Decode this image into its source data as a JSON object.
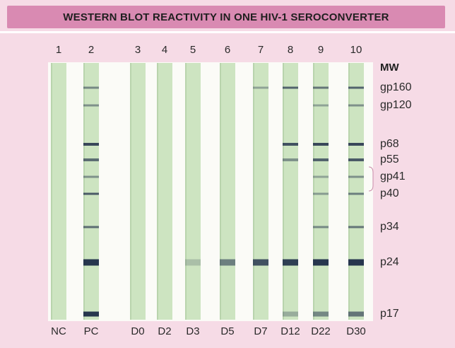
{
  "title": "WESTERN BLOT REACTIVITY IN ONE HIV-1 SEROCONVERTER",
  "strip_color": "#cde4c1",
  "band_color": "#1e2c48",
  "lanes": [
    {
      "number": "1",
      "label": "NC",
      "bands": []
    },
    {
      "number": "2",
      "label": "PC",
      "bands": [
        {
          "mw": "gp160",
          "intensity": 0.5
        },
        {
          "mw": "gp120",
          "intensity": 0.45
        },
        {
          "mw": "p68",
          "intensity": 0.85
        },
        {
          "mw": "p55",
          "intensity": 0.65
        },
        {
          "mw": "gp41",
          "intensity": 0.45
        },
        {
          "mw": "p40",
          "intensity": 0.75
        },
        {
          "mw": "p34",
          "intensity": 0.65
        },
        {
          "mw": "p24",
          "intensity": 0.95
        },
        {
          "mw": "p17",
          "intensity": 0.95
        }
      ]
    },
    {
      "number": "3",
      "label": "D0",
      "bands": []
    },
    {
      "number": "4",
      "label": "D2",
      "bands": []
    },
    {
      "number": "5",
      "label": "D3",
      "bands": [
        {
          "mw": "p24",
          "intensity": 0.2
        }
      ]
    },
    {
      "number": "6",
      "label": "D5",
      "bands": [
        {
          "mw": "p24",
          "intensity": 0.55
        }
      ]
    },
    {
      "number": "7",
      "label": "D7",
      "bands": [
        {
          "mw": "gp160",
          "intensity": 0.35
        },
        {
          "mw": "p24",
          "intensity": 0.8
        }
      ]
    },
    {
      "number": "8",
      "label": "D12",
      "bands": [
        {
          "mw": "gp160",
          "intensity": 0.7
        },
        {
          "mw": "p68",
          "intensity": 0.8
        },
        {
          "mw": "p55",
          "intensity": 0.45
        },
        {
          "mw": "p24",
          "intensity": 0.9
        },
        {
          "mw": "p17",
          "intensity": 0.3
        }
      ]
    },
    {
      "number": "9",
      "label": "D22",
      "bands": [
        {
          "mw": "gp160",
          "intensity": 0.6
        },
        {
          "mw": "gp120",
          "intensity": 0.35
        },
        {
          "mw": "p68",
          "intensity": 0.85
        },
        {
          "mw": "p55",
          "intensity": 0.7
        },
        {
          "mw": "gp41",
          "intensity": 0.35
        },
        {
          "mw": "p40",
          "intensity": 0.4
        },
        {
          "mw": "p34",
          "intensity": 0.5
        },
        {
          "mw": "p24",
          "intensity": 0.95
        },
        {
          "mw": "p17",
          "intensity": 0.5
        }
      ]
    },
    {
      "number": "10",
      "label": "D30",
      "bands": [
        {
          "mw": "gp160",
          "intensity": 0.7
        },
        {
          "mw": "gp120",
          "intensity": 0.45
        },
        {
          "mw": "p68",
          "intensity": 0.85
        },
        {
          "mw": "p55",
          "intensity": 0.75
        },
        {
          "mw": "gp41",
          "intensity": 0.45
        },
        {
          "mw": "p40",
          "intensity": 0.55
        },
        {
          "mw": "p34",
          "intensity": 0.6
        },
        {
          "mw": "p24",
          "intensity": 0.95
        },
        {
          "mw": "p17",
          "intensity": 0.6
        }
      ]
    }
  ],
  "mw_header": "MW",
  "mw_markers": [
    "gp160",
    "gp120",
    "p68",
    "p55",
    "gp41",
    "p40",
    "p34",
    "p24",
    "p17"
  ]
}
